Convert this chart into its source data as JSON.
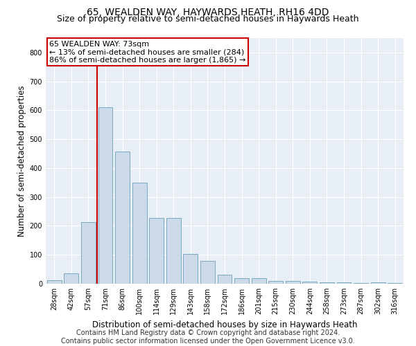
{
  "title": "65, WEALDEN WAY, HAYWARDS HEATH, RH16 4DD",
  "subtitle": "Size of property relative to semi-detached houses in Haywards Heath",
  "xlabel": "Distribution of semi-detached houses by size in Haywards Heath",
  "ylabel": "Number of semi-detached properties",
  "footer_line1": "Contains HM Land Registry data © Crown copyright and database right 2024.",
  "footer_line2": "Contains public sector information licensed under the Open Government Licence v3.0.",
  "categories": [
    "28sqm",
    "42sqm",
    "57sqm",
    "71sqm",
    "86sqm",
    "100sqm",
    "114sqm",
    "129sqm",
    "143sqm",
    "158sqm",
    "172sqm",
    "186sqm",
    "201sqm",
    "215sqm",
    "230sqm",
    "244sqm",
    "258sqm",
    "273sqm",
    "287sqm",
    "302sqm",
    "316sqm"
  ],
  "values": [
    12,
    35,
    213,
    610,
    458,
    350,
    228,
    228,
    103,
    78,
    30,
    20,
    20,
    10,
    10,
    8,
    5,
    5,
    3,
    5,
    3
  ],
  "bar_color": "#ccd9e8",
  "bar_edge_color": "#7aaabf",
  "property_label": "65 WEALDEN WAY: 73sqm",
  "annotation_line2": "← 13% of semi-detached houses are smaller (284)",
  "annotation_line3": "86% of semi-detached houses are larger (1,865) →",
  "vline_color": "#cc0000",
  "vline_x": 3.0,
  "annotation_box_color": "#ffffff",
  "annotation_box_edge_color": "#cc0000",
  "ylim": [
    0,
    850
  ],
  "yticks": [
    0,
    100,
    200,
    300,
    400,
    500,
    600,
    700,
    800
  ],
  "background_color": "#e8eef5",
  "grid_color": "#ffffff",
  "title_fontsize": 10,
  "subtitle_fontsize": 9,
  "axis_label_fontsize": 8.5,
  "tick_fontsize": 7,
  "footer_fontsize": 7,
  "annotation_fontsize": 8
}
